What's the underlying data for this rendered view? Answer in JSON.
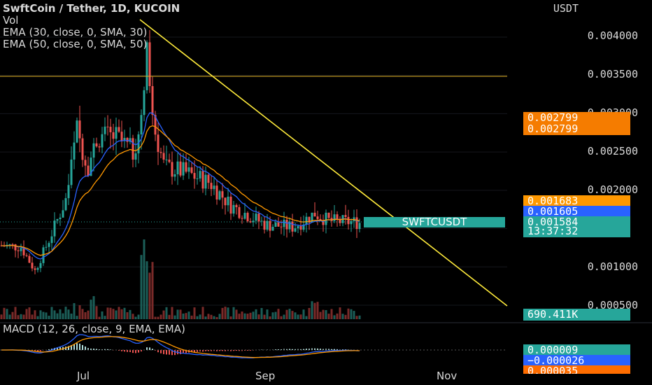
{
  "legend": {
    "title": "SwftCoin / Tether, 1D, KUCOIN",
    "vol": "Vol",
    "ema30": "EMA (30, close, 0, SMA, 30)",
    "ema50": "EMA (50, close, 0, SMA, 50)",
    "macd": "MACD (12, 26, close, 9, EMA, EMA)"
  },
  "price_axis": {
    "currency": "USDT",
    "ticks": [
      "0.004000",
      "0.003500",
      "0.003000",
      "0.002500",
      "0.002000",
      "0.001000",
      "0.000500"
    ]
  },
  "price_tags": {
    "alert1": "0.002799",
    "alert2": "0.002799",
    "ema50": "0.001683",
    "ema30": "0.001605",
    "last": "0.001584",
    "countdown": "13:37:32",
    "volume": "690.411K",
    "macd": "0.000009",
    "signal": "−0.000026",
    "hist": "0.000035"
  },
  "symbol_label": "SWFTCUSDT",
  "time_axis": [
    "Jul",
    "Sep",
    "Nov"
  ],
  "colors": {
    "up": "#26a69a",
    "down": "#ef5350",
    "ema30": "#2962ff",
    "ema50": "#ff9800",
    "trendline": "#ffeb3b",
    "hline": "#e6b422",
    "alert": "#f57c00"
  },
  "chart_data": {
    "type": "candlestick",
    "title": "SwftCoin / Tether, 1D, KUCOIN",
    "ylabel": "USDT",
    "ylim": [
      0.0005,
      0.0042
    ],
    "horizontal_line": 0.00345,
    "last_price": 0.001584,
    "ema30_last": 0.001605,
    "ema50_last": 0.001683
  }
}
